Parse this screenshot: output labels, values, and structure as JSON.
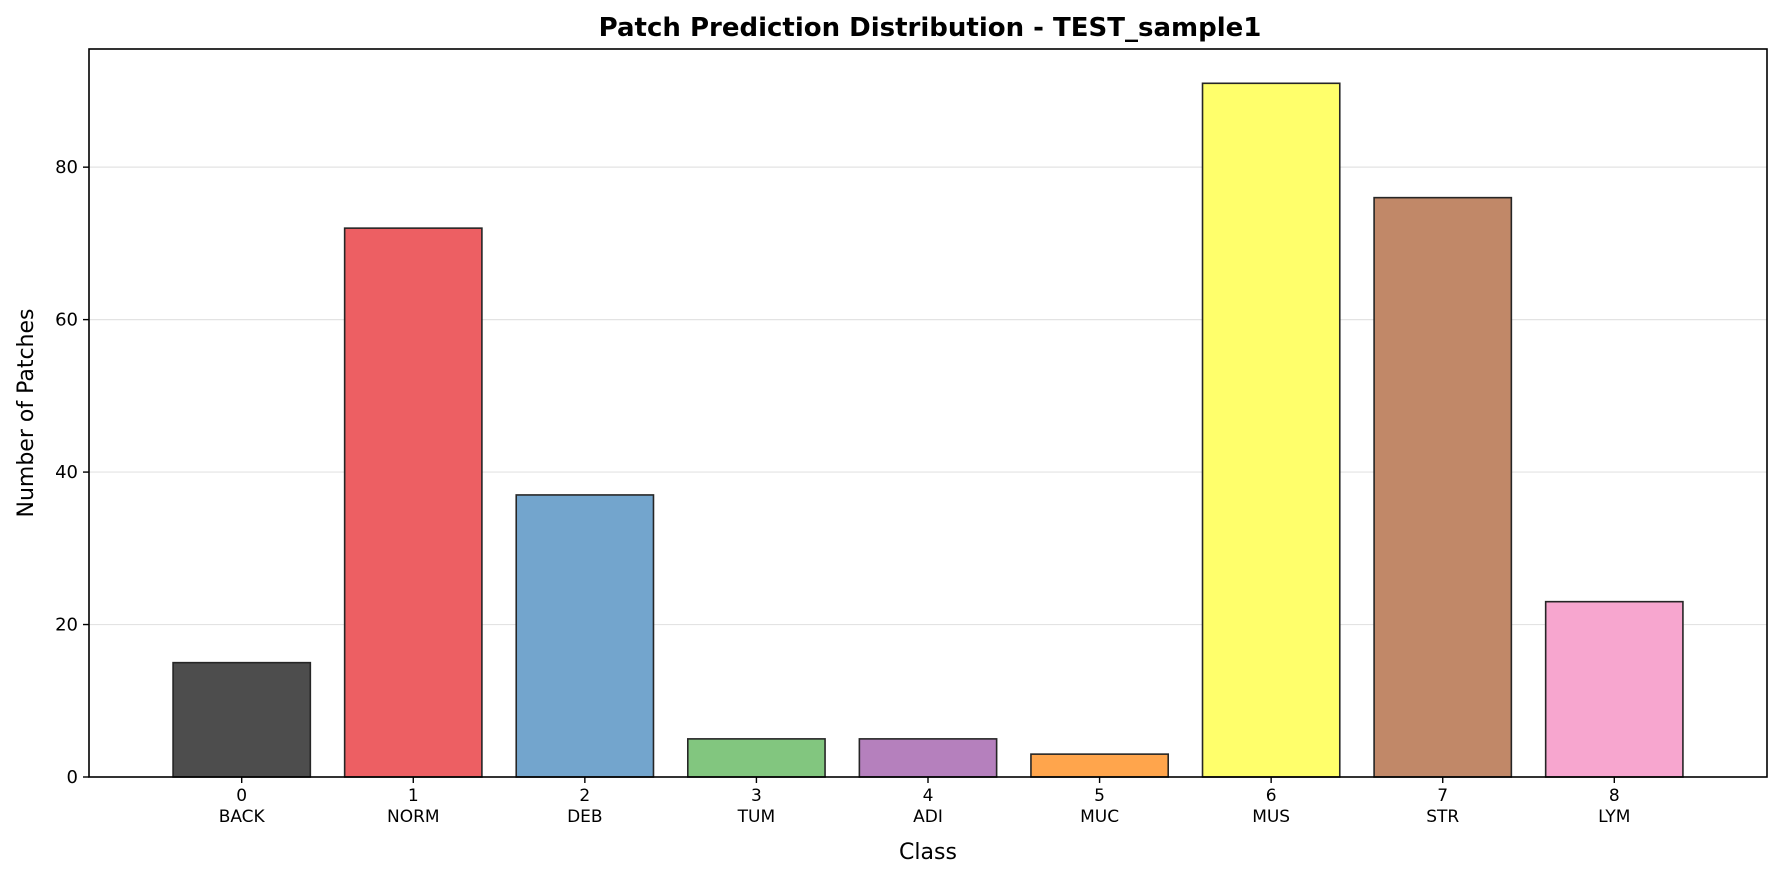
{
  "chart_data": {
    "type": "bar",
    "title": "Patch Prediction Distribution - TEST_sample1",
    "xlabel": "Class",
    "ylabel": "Number of Patches",
    "categories": [
      "0",
      "1",
      "2",
      "3",
      "4",
      "5",
      "6",
      "7",
      "8"
    ],
    "category_names": [
      "BACK",
      "NORM",
      "DEB",
      "TUM",
      "ADI",
      "MUC",
      "MUS",
      "STR",
      "LYM"
    ],
    "values": [
      15,
      72,
      37,
      5,
      5,
      3,
      91,
      76,
      23
    ],
    "colors": [
      "#4d4d4d",
      "#ed5f63",
      "#73a5cd",
      "#82c67f",
      "#b580bd",
      "#ffa54c",
      "#ffff6b",
      "#c18868",
      "#f7a6cf"
    ],
    "ylim": [
      0,
      95.5
    ],
    "yticks": [
      0,
      20,
      40,
      60,
      80
    ],
    "grid": "y-only"
  }
}
